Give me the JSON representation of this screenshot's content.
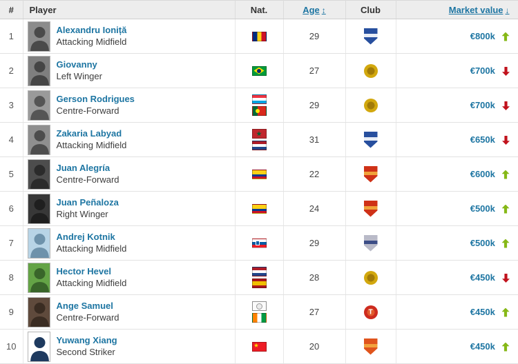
{
  "colors": {
    "link_blue": "#1d75a2",
    "header_bg": "#ededed",
    "trend_up_green": "#86b817",
    "trend_down_red": "#c1121c"
  },
  "table": {
    "headers": {
      "rank": "#",
      "player": "Player",
      "nationality": "Nat.",
      "age": "Age",
      "club": "Club",
      "market_value": "Market value"
    },
    "icons": {
      "age_sort_icon": "↕",
      "market_value_sort_icon": "↓"
    },
    "rows": [
      {
        "rank": "1",
        "name": "Alexandru Ioniță",
        "position": "Attacking Midfield",
        "age": "29",
        "nationalities": [
          {
            "id": "romania",
            "label": "Romania"
          }
        ],
        "club_badge": {
          "name": "blue-shield-badge",
          "shape": "shield",
          "color": "#274f9e",
          "detail": "#e8edf6",
          "letter": ""
        },
        "market_value": "€800k",
        "trend": "up",
        "photo": {
          "bg": "#8c8c8c",
          "fg": "#4a4a4a"
        }
      },
      {
        "rank": "2",
        "name": "Giovanny",
        "position": "Left Winger",
        "age": "27",
        "nationalities": [
          {
            "id": "brazil",
            "label": "Brazil"
          }
        ],
        "club_badge": {
          "name": "gold-circle-badge",
          "shape": "circle",
          "color": "#d2a80e",
          "detail": "#a27b08",
          "letter": ""
        },
        "market_value": "€700k",
        "trend": "down",
        "photo": {
          "bg": "#7f7f7f",
          "fg": "#454545"
        }
      },
      {
        "rank": "3",
        "name": "Gerson Rodrigues",
        "position": "Centre-Forward",
        "age": "29",
        "nationalities": [
          {
            "id": "luxembourg",
            "label": "Luxembourg"
          },
          {
            "id": "portugal",
            "label": "Portugal"
          }
        ],
        "club_badge": {
          "name": "gold-circle-badge",
          "shape": "circle",
          "color": "#d2a80e",
          "detail": "#a27b08",
          "letter": ""
        },
        "market_value": "€700k",
        "trend": "down",
        "photo": {
          "bg": "#9a9a9a",
          "fg": "#555555"
        }
      },
      {
        "rank": "4",
        "name": "Zakaria Labyad",
        "position": "Attacking Midfield",
        "age": "31",
        "nationalities": [
          {
            "id": "morocco",
            "label": "Morocco"
          },
          {
            "id": "netherlands",
            "label": "Netherlands"
          }
        ],
        "club_badge": {
          "name": "blue-shield-badge",
          "shape": "shield",
          "color": "#274f9e",
          "detail": "#e8edf6",
          "letter": ""
        },
        "market_value": "€650k",
        "trend": "down",
        "photo": {
          "bg": "#8f8f8f",
          "fg": "#4d4d4d"
        }
      },
      {
        "rank": "5",
        "name": "Juan Alegría",
        "position": "Centre-Forward",
        "age": "22",
        "nationalities": [
          {
            "id": "colombia",
            "label": "Colombia"
          }
        ],
        "club_badge": {
          "name": "red-crest-badge",
          "shape": "shield",
          "color": "#cf3117",
          "detail": "#f0a23a",
          "letter": ""
        },
        "market_value": "€600k",
        "trend": "up",
        "photo": {
          "bg": "#4d4d4d",
          "fg": "#2b2b2b"
        }
      },
      {
        "rank": "6",
        "name": "Juan Peñaloza",
        "position": "Right Winger",
        "age": "24",
        "nationalities": [
          {
            "id": "colombia",
            "label": "Colombia"
          }
        ],
        "club_badge": {
          "name": "red-crest-badge",
          "shape": "shield",
          "color": "#cf3117",
          "detail": "#f0a23a",
          "letter": ""
        },
        "market_value": "€500k",
        "trend": "up",
        "photo": {
          "bg": "#383838",
          "fg": "#1f1f1f"
        }
      },
      {
        "rank": "7",
        "name": "Andrej Kotnik",
        "position": "Attacking Midfield",
        "age": "29",
        "nationalities": [
          {
            "id": "slovenia",
            "label": "Slovenia"
          }
        ],
        "club_badge": {
          "name": "silver-shield-badge",
          "shape": "shield",
          "color": "#b9bac8",
          "detail": "#3c4d86",
          "letter": ""
        },
        "market_value": "€500k",
        "trend": "up",
        "photo": {
          "bg": "#b8d4e6",
          "fg": "#6e92ab"
        }
      },
      {
        "rank": "8",
        "name": "Hector Hevel",
        "position": "Attacking Midfield",
        "age": "28",
        "nationalities": [
          {
            "id": "netherlands",
            "label": "Netherlands"
          },
          {
            "id": "spain",
            "label": "Spain"
          }
        ],
        "club_badge": {
          "name": "gold-circle-badge",
          "shape": "circle",
          "color": "#d2a80e",
          "detail": "#a27b08",
          "letter": ""
        },
        "market_value": "€450k",
        "trend": "down",
        "photo": {
          "bg": "#64a346",
          "fg": "#39652a"
        }
      },
      {
        "rank": "9",
        "name": "Ange Samuel",
        "position": "Centre-Forward",
        "age": "27",
        "nationalities": [
          {
            "id": "unknown",
            "label": "Unknown"
          },
          {
            "id": "ivory-coast",
            "label": "Cote d'Ivoire"
          }
        ],
        "club_badge": {
          "name": "red-circle-badge",
          "shape": "circle",
          "color": "#cd2b1e",
          "detail": "#e05a2b",
          "letter": "T"
        },
        "market_value": "€450k",
        "trend": "up",
        "photo": {
          "bg": "#5f4a3c",
          "fg": "#3a2c22"
        }
      },
      {
        "rank": "10",
        "name": "Yuwang Xiang",
        "position": "Second Striker",
        "age": "20",
        "nationalities": [
          {
            "id": "china",
            "label": "China"
          }
        ],
        "club_badge": {
          "name": "orange-shield-badge",
          "shape": "shield",
          "color": "#e0541c",
          "detail": "#f2a23c",
          "letter": ""
        },
        "market_value": "€450k",
        "trend": "up",
        "photo": {
          "bg": "#ffffff",
          "fg": "#1e3a5f"
        }
      }
    ]
  }
}
